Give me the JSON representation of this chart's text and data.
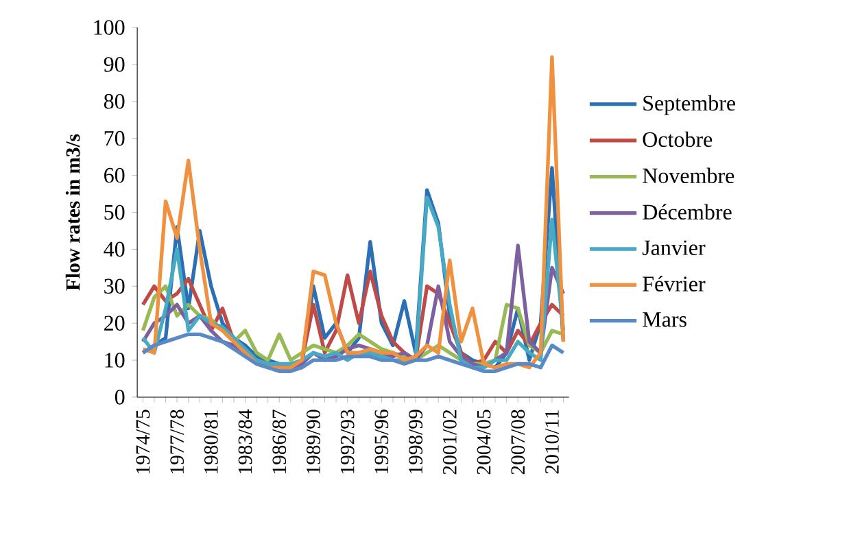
{
  "chart_data": {
    "type": "line",
    "ylabel": "Flow rates in m3/s",
    "categories": [
      "1974/75",
      null,
      null,
      "1977/78",
      null,
      null,
      "1980/81",
      null,
      null,
      "1983/84",
      null,
      null,
      "1986/87",
      null,
      null,
      "1989/90",
      null,
      null,
      "1992/93",
      null,
      null,
      "1995/96",
      null,
      null,
      "1998/99",
      null,
      null,
      "2001/02",
      null,
      null,
      "2004/05",
      null,
      null,
      "2007/08",
      null,
      null,
      "2010/11",
      null
    ],
    "ylim": [
      0,
      100
    ],
    "yticks": [
      0,
      10,
      20,
      30,
      40,
      50,
      60,
      70,
      80,
      90,
      100
    ],
    "grid": false,
    "legend": "right",
    "marker": "none",
    "line_style": "solid",
    "series": [
      {
        "name": "Septembre",
        "color": "#2c6fb5",
        "values": [
          12,
          14,
          16,
          46,
          24,
          45,
          30,
          20,
          16,
          14,
          11,
          10,
          9,
          8,
          9,
          30,
          16,
          20,
          12,
          16,
          42,
          20,
          14,
          26,
          12,
          56,
          47,
          22,
          12,
          10,
          9,
          8,
          12,
          24,
          10,
          20,
          62,
          15
        ]
      },
      {
        "name": "Octobre",
        "color": "#be4b48",
        "values": [
          25,
          30,
          26,
          28,
          32,
          25,
          18,
          24,
          15,
          12,
          10,
          9,
          8,
          8,
          10,
          25,
          12,
          18,
          33,
          20,
          34,
          22,
          15,
          12,
          10,
          30,
          28,
          20,
          12,
          9,
          10,
          15,
          12,
          18,
          14,
          20,
          25,
          22
        ]
      },
      {
        "name": "Novembre",
        "color": "#98b954",
        "values": [
          18,
          27,
          30,
          22,
          25,
          22,
          21,
          18,
          15,
          18,
          12,
          10,
          17,
          10,
          12,
          14,
          13,
          12,
          14,
          17,
          15,
          13,
          12,
          11,
          10,
          12,
          14,
          12,
          10,
          9,
          9,
          10,
          25,
          24,
          14,
          12,
          18,
          17
        ]
      },
      {
        "name": "Décembre",
        "color": "#7d60a0",
        "values": [
          15,
          20,
          22,
          25,
          20,
          22,
          18,
          15,
          14,
          12,
          10,
          8,
          8,
          8,
          9,
          12,
          10,
          11,
          13,
          14,
          13,
          12,
          11,
          12,
          10,
          14,
          30,
          15,
          11,
          9,
          8,
          10,
          12,
          41,
          15,
          12,
          35,
          28
        ]
      },
      {
        "name": "Janvier",
        "color": "#46aac5",
        "values": [
          16,
          12,
          24,
          40,
          18,
          22,
          20,
          19,
          16,
          13,
          10,
          9,
          9,
          9,
          10,
          12,
          11,
          12,
          10,
          12,
          12,
          11,
          10,
          10,
          10,
          54,
          46,
          25,
          10,
          8,
          8,
          10,
          10,
          15,
          12,
          10,
          48,
          18
        ]
      },
      {
        "name": "Février",
        "color": "#f0913f",
        "values": [
          13,
          12,
          53,
          43,
          64,
          40,
          20,
          18,
          15,
          12,
          9,
          8,
          8,
          8,
          10,
          34,
          33,
          20,
          12,
          12,
          13,
          12,
          12,
          10,
          11,
          14,
          12,
          37,
          15,
          24,
          9,
          8,
          9,
          9,
          8,
          12,
          92,
          15
        ]
      },
      {
        "name": "Mars",
        "color": "#5a8ac6",
        "values": [
          12,
          14,
          15,
          16,
          17,
          17,
          16,
          15,
          13,
          11,
          9,
          8,
          7,
          7,
          8,
          10,
          10,
          10,
          11,
          11,
          11,
          10,
          10,
          9,
          10,
          10,
          11,
          10,
          9,
          8,
          7,
          7,
          8,
          9,
          9,
          8,
          14,
          12
        ]
      }
    ]
  }
}
